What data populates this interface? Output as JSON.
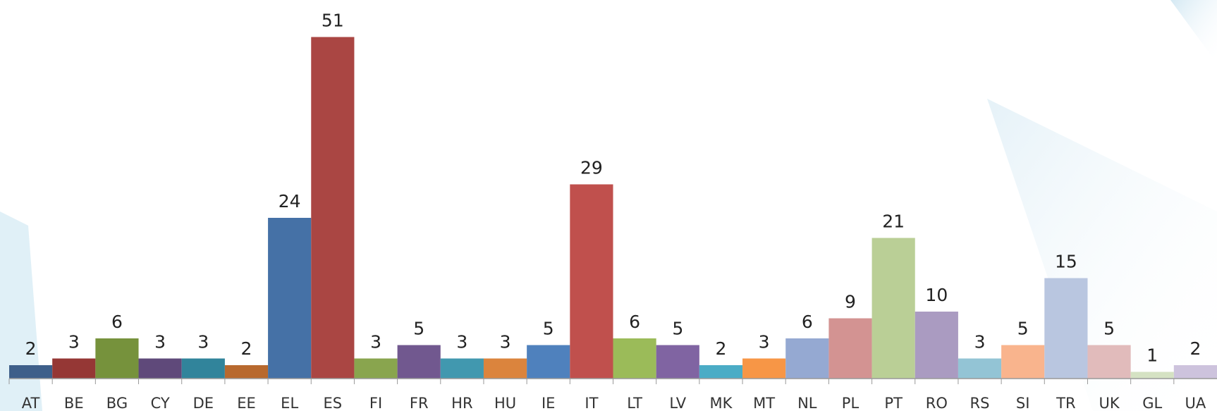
{
  "chart_data": {
    "type": "bar",
    "categories": [
      "AT",
      "BE",
      "BG",
      "CY",
      "DE",
      "EE",
      "EL",
      "ES",
      "FI",
      "FR",
      "HR",
      "HU",
      "IE",
      "IT",
      "LT",
      "LV",
      "MK",
      "MT",
      "NL",
      "PL",
      "PT",
      "RO",
      "RS",
      "SI",
      "TR",
      "UK",
      "GL",
      "UA"
    ],
    "values": [
      2,
      3,
      6,
      3,
      3,
      2,
      24,
      51,
      3,
      5,
      3,
      3,
      5,
      29,
      6,
      5,
      2,
      3,
      6,
      9,
      21,
      10,
      3,
      5,
      15,
      5,
      1,
      2
    ],
    "colors": [
      "#3e5f8a",
      "#953735",
      "#76923c",
      "#5f497a",
      "#31849b",
      "#b8692e",
      "#4571a6",
      "#aa4643",
      "#89a54e",
      "#71588f",
      "#4198af",
      "#db843d",
      "#4f81bd",
      "#c0504d",
      "#9bbb59",
      "#8064a2",
      "#4bacc6",
      "#f79646",
      "#95a9d2",
      "#d39392",
      "#bacf96",
      "#aa9bc1",
      "#93c4d5",
      "#f9b48d",
      "#b9c6e0",
      "#e1bbbb",
      "#d5e2c3",
      "#cdc3dd"
    ],
    "ylim": [
      0,
      51
    ]
  }
}
